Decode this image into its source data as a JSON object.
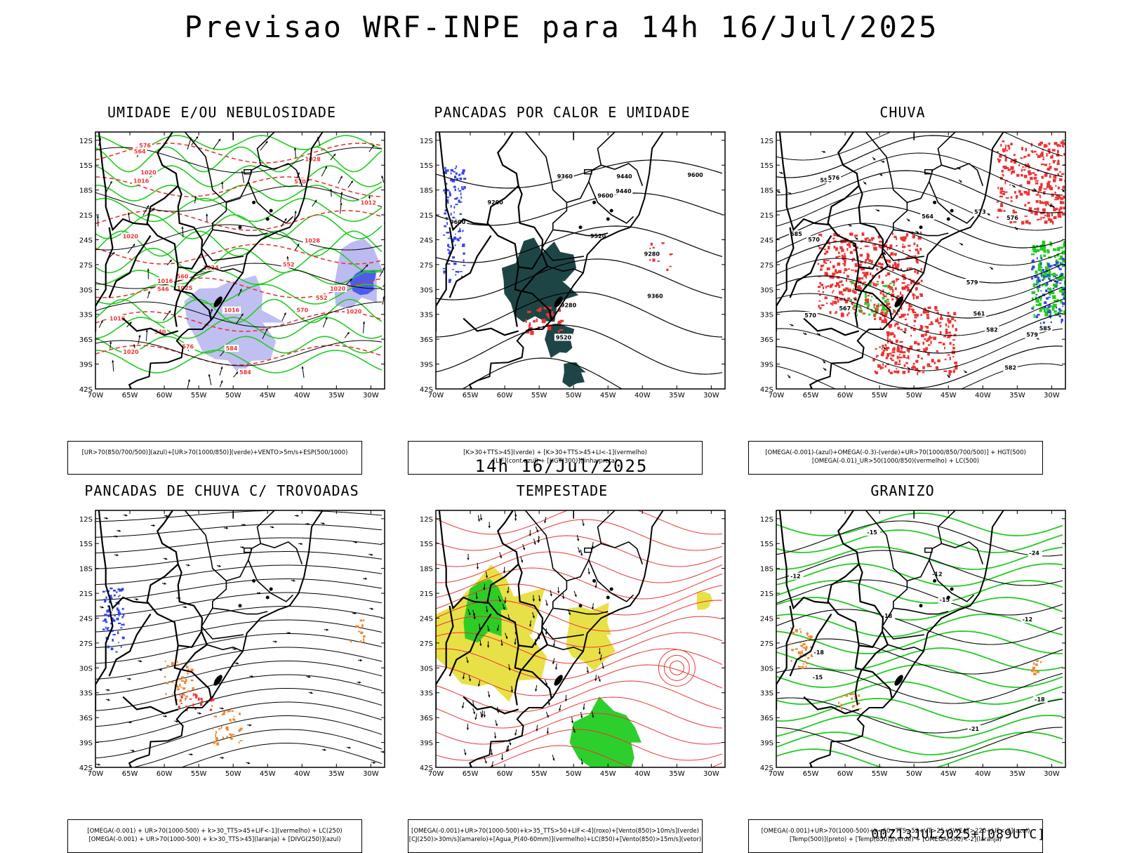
{
  "title": "Previsao WRF-INPE  para 14h 16/Jul/2025",
  "middle_title": "14h 16/Jul/2025",
  "footer": "00Z13JUL2025+[089UTC]",
  "axes": {
    "lat_ticks": [
      "12S",
      "15S",
      "18S",
      "21S",
      "24S",
      "27S",
      "30S",
      "33S",
      "36S",
      "39S",
      "42S"
    ],
    "lon_ticks": [
      "70W",
      "65W",
      "60W",
      "55W",
      "50W",
      "45W",
      "40W",
      "35W",
      "30W"
    ]
  },
  "colors": {
    "green": "#22cc22",
    "red": "#ee3333",
    "blue": "#3344ee",
    "lavender": "#aaaaee",
    "darkteal": "#1e4545",
    "orange": "#ee8833",
    "yellow": "#e6dd33",
    "black": "#000000"
  },
  "panels": [
    {
      "title": "UMIDADE E/OU NEBULOSIDADE",
      "legend": [
        "[UR>70(850/700/500)](azul)+[UR>70(1000/850)](verde)+VENTO>5m/s+ESP(500/1000)"
      ],
      "contour_labels": [
        "1016",
        "1020",
        "1016",
        "1012",
        "1025",
        "1020",
        "1016",
        "1020",
        "1016",
        "1020",
        "1028",
        "1024",
        "1028",
        "1020",
        "570",
        "576",
        "584",
        "584",
        "576",
        "552",
        "546",
        "540",
        "552",
        "560",
        "570",
        "564"
      ]
    },
    {
      "title": "PANCADAS POR CALOR E UMIDADE",
      "legend": [
        "[K>30+TTS>45](verde) + [K>30+TTS>45+LI<-1](vermelho)",
        "[LIF](cont.azul) + [HGT(300)](linha preta)"
      ],
      "contour_labels": [
        "9600",
        "9600",
        "9600",
        "9520",
        "9520",
        "9440",
        "9360",
        "9280",
        "9200",
        "9440",
        "9360",
        "9280"
      ]
    },
    {
      "title": "CHUVA",
      "legend": [
        "[OMEGA(-0.001)-(azul)+OMEGA(-0.3)-(verde)+UR>70(1000/850/700/500)] + HGT(500)",
        "[OMEGA(-0.01)_UR>50(1000/850)(vermelho) + LC(500)"
      ],
      "contour_labels": [
        "585",
        "585",
        "582",
        "579",
        "576",
        "573",
        "570",
        "567",
        "564",
        "561",
        "558",
        "576",
        "579",
        "582",
        "570"
      ]
    },
    {
      "title": "PANCADAS DE CHUVA C/ TROVOADAS",
      "legend": [
        "[OMEGA(-0.001) + UR>70(1000-500) + k>30_TTS>45+LIF<-1](vermelho) + LC(250)",
        "[OMEGA(-0.001) + UR>70(1000-500) + k>30_TTS>45](laranja) + [DIVG(250)](azul)"
      ],
      "contour_labels": []
    },
    {
      "title": "TEMPESTADE",
      "legend": [
        "[OMEGA(-0.001)+UR>70(1000-500)+k>35_TTS>50+LIF<-4](roxo)+[Vento(850)>10m/s](verde)",
        "[CJ(250)>30m/s](amarelo)+[Agua_P(40-60mm)](vermelho)+LC(850)+[Vento(850)>15m/s](vetor)"
      ],
      "contour_labels": []
    },
    {
      "title": "GRANIZO",
      "legend": [
        "[OMEGA(-0.001)+UR>70(1000-500)+k<60+TTS>52+VT>25+SWEAT>220+LIF<-2](azul)",
        "[Temp(500)](preto) + [Temp(850)](verde) + [OMEGA(500)<-2](laranja)"
      ],
      "contour_labels": [
        "-12",
        "-12",
        "-15",
        "-15",
        "-18",
        "-18",
        "-21",
        "-24",
        "-12",
        "-15",
        "-18"
      ]
    }
  ]
}
